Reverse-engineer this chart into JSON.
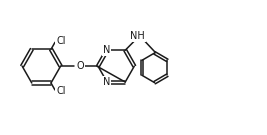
{
  "bg_color": "#ffffff",
  "line_color": "#1a1a1a",
  "line_width": 1.1,
  "font_size": 7.0,
  "figsize": [
    2.67,
    1.35
  ],
  "dpi": 100,
  "xlim": [
    0,
    10
  ],
  "ylim": [
    0,
    5
  ]
}
